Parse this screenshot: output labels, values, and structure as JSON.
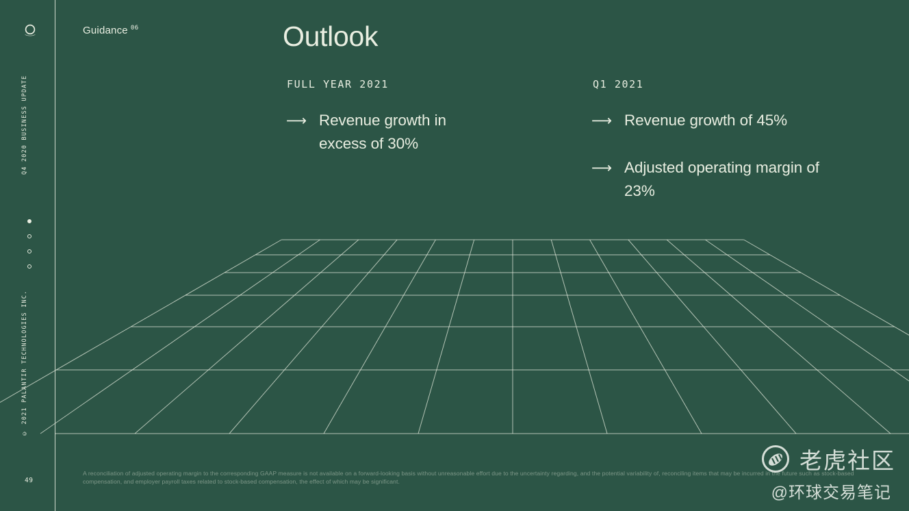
{
  "slide": {
    "background_color": "#2c5546",
    "text_color": "#e9eee1",
    "grid_line_color": "rgba(233,238,225,0.72)"
  },
  "sidebar": {
    "logo_name": "palantir-mark",
    "top_vertical_label": "Q4 2020 BUSINESS UPDATE",
    "bottom_vertical_label": "© 2021 PALANTIR TECHNOLOGIES INC.",
    "page_number": "49",
    "pagination": {
      "total": 4,
      "active_index": 0
    }
  },
  "header": {
    "section_label": "Guidance",
    "section_number": "06"
  },
  "main": {
    "title": "Outlook",
    "bullet_arrow": "⟶",
    "columns": [
      {
        "heading": "FULL YEAR 2021",
        "bullets": [
          "Revenue growth in excess of 30%"
        ]
      },
      {
        "heading": "Q1 2021",
        "bullets": [
          "Revenue growth of 45%",
          "Adjusted operating margin of 23%"
        ]
      }
    ]
  },
  "footnote": "A reconciliation of adjusted operating margin to the corresponding GAAP measure is not available on a forward-looking basis without unreasonable effort due to the uncertainty regarding, and the potential variability of, reconciling items that may be incurred in the future such as stock-based compensation, and employer payroll taxes related to stock-based compensation, the effect of which may be significant.",
  "watermark": {
    "community_name": "老虎社区",
    "handle": "@环球交易笔记"
  }
}
